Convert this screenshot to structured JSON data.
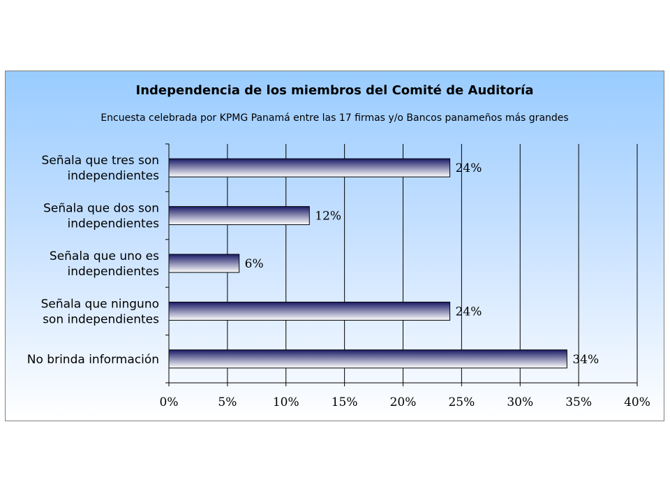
{
  "chart_data": {
    "type": "bar",
    "orientation": "horizontal",
    "title": "Independencia de los miembros del Comité de Auditoría",
    "subtitle": "Encuesta celebrada por KPMG Panamá entre las 17 firmas y/o Bancos panameños más grandes",
    "categories": [
      [
        "Señala que tres son",
        "independientes"
      ],
      [
        "Señala que dos son",
        "independientes"
      ],
      [
        "Señala que uno es",
        "independientes"
      ],
      [
        "Señala que ninguno",
        "son independientes"
      ],
      [
        "No brinda información"
      ]
    ],
    "values": [
      24,
      12,
      6,
      24,
      34
    ],
    "value_labels": [
      "24%",
      "12%",
      "6%",
      "24%",
      "34%"
    ],
    "xlim": [
      0,
      40
    ],
    "xticks": [
      0,
      5,
      10,
      15,
      20,
      25,
      30,
      35,
      40
    ],
    "xtick_labels": [
      "0%",
      "5%",
      "10%",
      "15%",
      "20%",
      "25%",
      "30%",
      "35%",
      "40%"
    ],
    "grid": "vertical",
    "legend": "none",
    "colors": {
      "bar_dark": "#1a1a66",
      "bar_light": "#ffffff",
      "background_top": "#99ccff",
      "background_bottom": "#ffffff"
    }
  }
}
